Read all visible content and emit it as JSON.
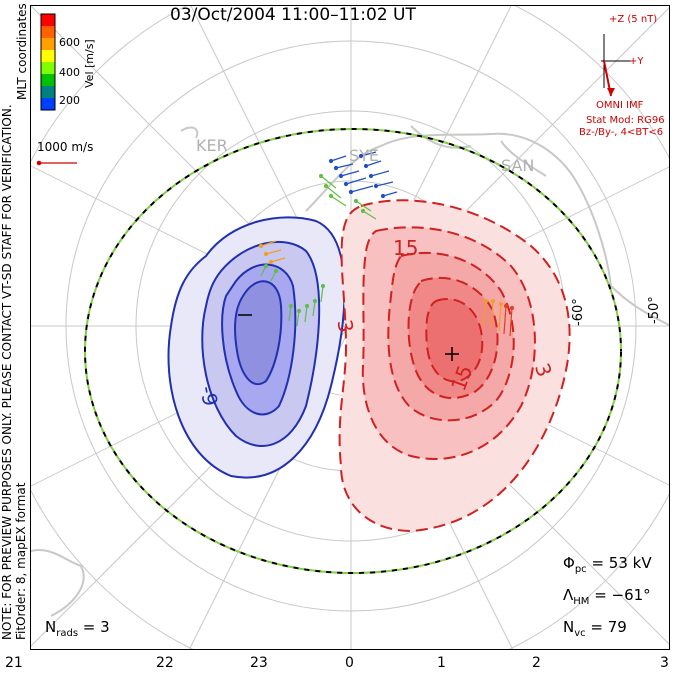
{
  "title": "03/Oct/2004 11:00–11:02 UT",
  "side_note": {
    "line1": "NOTE: FOR PREVIEW PURPOSES ONLY. PLEASE CONTACT VT-SD STAFF FOR VERIFICATION.",
    "line2": "FitOrder: 8, mapEX format"
  },
  "coordinates_label": "MLT coordinates",
  "colorbar": {
    "axis_label": "Vel [m/s]",
    "ticks": [
      "600",
      "400",
      "200"
    ],
    "colors": [
      "#ff0000",
      "#ff6000",
      "#ffa000",
      "#ffff00",
      "#80ff00",
      "#00c000",
      "#008080",
      "#0040ff"
    ]
  },
  "reference_vector_label": "1000 m/s",
  "imf": {
    "z_label": "+Z (5 nT)",
    "y_label": "+Y",
    "source": "OMNI IMF",
    "model": "Stat Mod: RG96",
    "condition": "Bz-/By-, 4<BT<6"
  },
  "stations": [
    "KER",
    "SYE",
    "SAN"
  ],
  "latitude_labels": [
    "-60°",
    "-50°"
  ],
  "contour_labels": {
    "negative": "-9",
    "positive_1": "15",
    "positive_2": "15",
    "positive_3": "3",
    "positive_4": "3"
  },
  "stats": {
    "phi_pc": "53 kV",
    "lambda_hm": "−61°",
    "n_vc": "79",
    "n_rads": "3"
  },
  "mlt_ticks": [
    "21",
    "22",
    "23",
    "0",
    "1",
    "2",
    "3"
  ],
  "colors": {
    "dusk_cell": "#2030b0",
    "dawn_cell": "#d02020",
    "heppner_maynard": "#80d040",
    "coastline": "#c8c8c8"
  }
}
